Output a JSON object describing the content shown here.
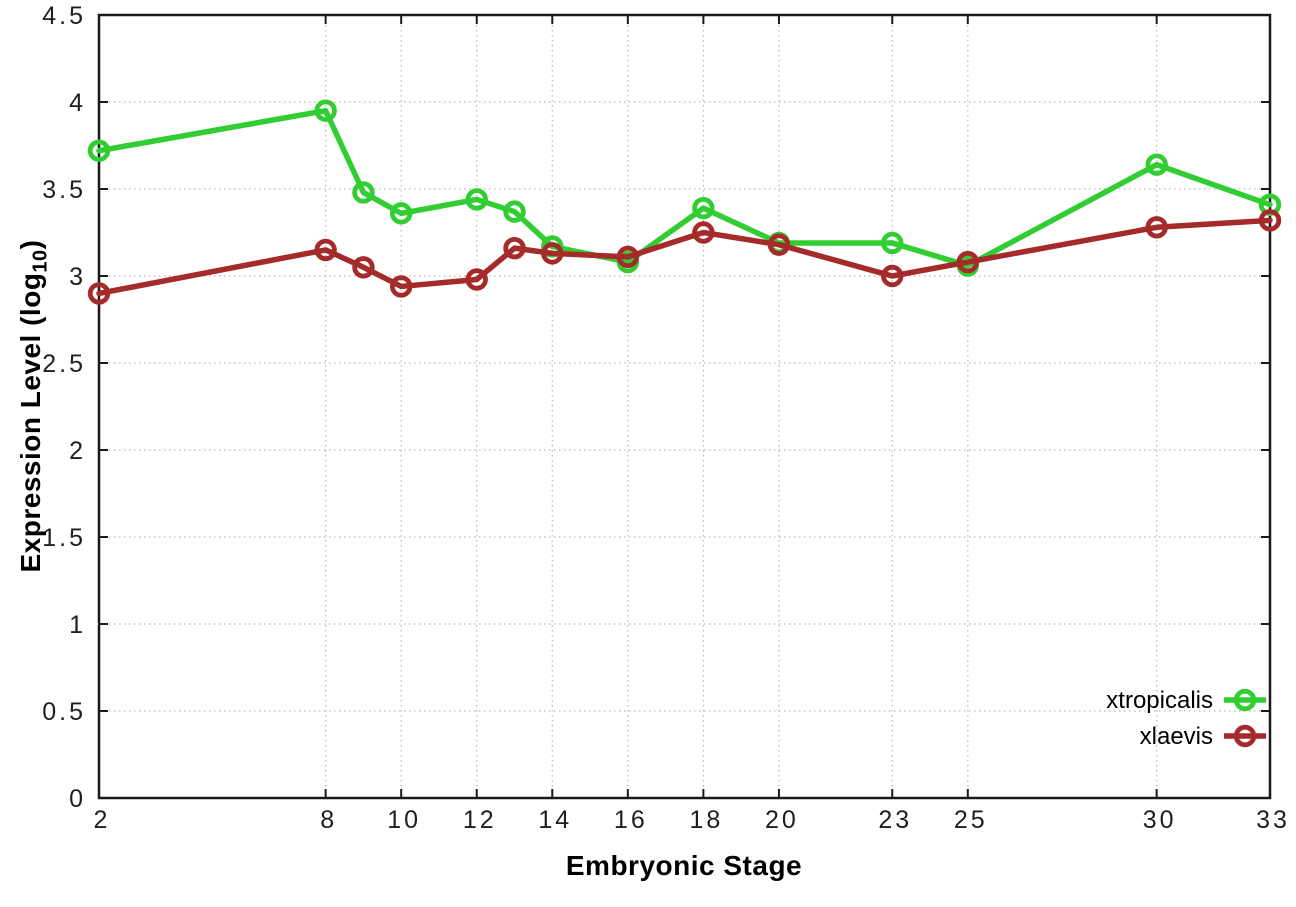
{
  "figure": {
    "ylabel_prefix": "Expression Level (log",
    "ylabel_sub": "10",
    "ylabel_suffix": ")"
  },
  "chart_data": {
    "type": "line",
    "title": "",
    "xlabel": "Embryonic Stage",
    "ylabel": "Expression Level (log10)",
    "x": [
      2,
      8,
      9,
      10,
      12,
      13,
      14,
      16,
      18,
      20,
      23,
      25,
      30,
      33
    ],
    "series": [
      {
        "name": "xtropicalis",
        "color": "#32cd32",
        "values": [
          3.72,
          3.95,
          3.48,
          3.36,
          3.44,
          3.37,
          3.17,
          3.08,
          3.39,
          3.19,
          3.19,
          3.06,
          3.64,
          3.41
        ]
      },
      {
        "name": "xlaevis",
        "color": "#a52a2a",
        "values": [
          2.9,
          3.15,
          3.05,
          2.94,
          2.98,
          3.16,
          3.13,
          3.11,
          3.25,
          3.18,
          3.0,
          3.08,
          3.28,
          3.32
        ]
      }
    ],
    "x_ticks": [
      2,
      8,
      10,
      12,
      14,
      16,
      18,
      20,
      23,
      25,
      30,
      33
    ],
    "y_ticks": [
      0,
      0.5,
      1,
      1.5,
      2,
      2.5,
      3,
      3.5,
      4,
      4.5
    ],
    "xlim": [
      2,
      33
    ],
    "ylim": [
      0,
      4.5
    ],
    "grid": true,
    "legend_position": "bottom-right",
    "colors": {
      "border": "#1a1a1a",
      "grid": "#b8b8b8",
      "tick_text": "#1f1f1f"
    }
  }
}
